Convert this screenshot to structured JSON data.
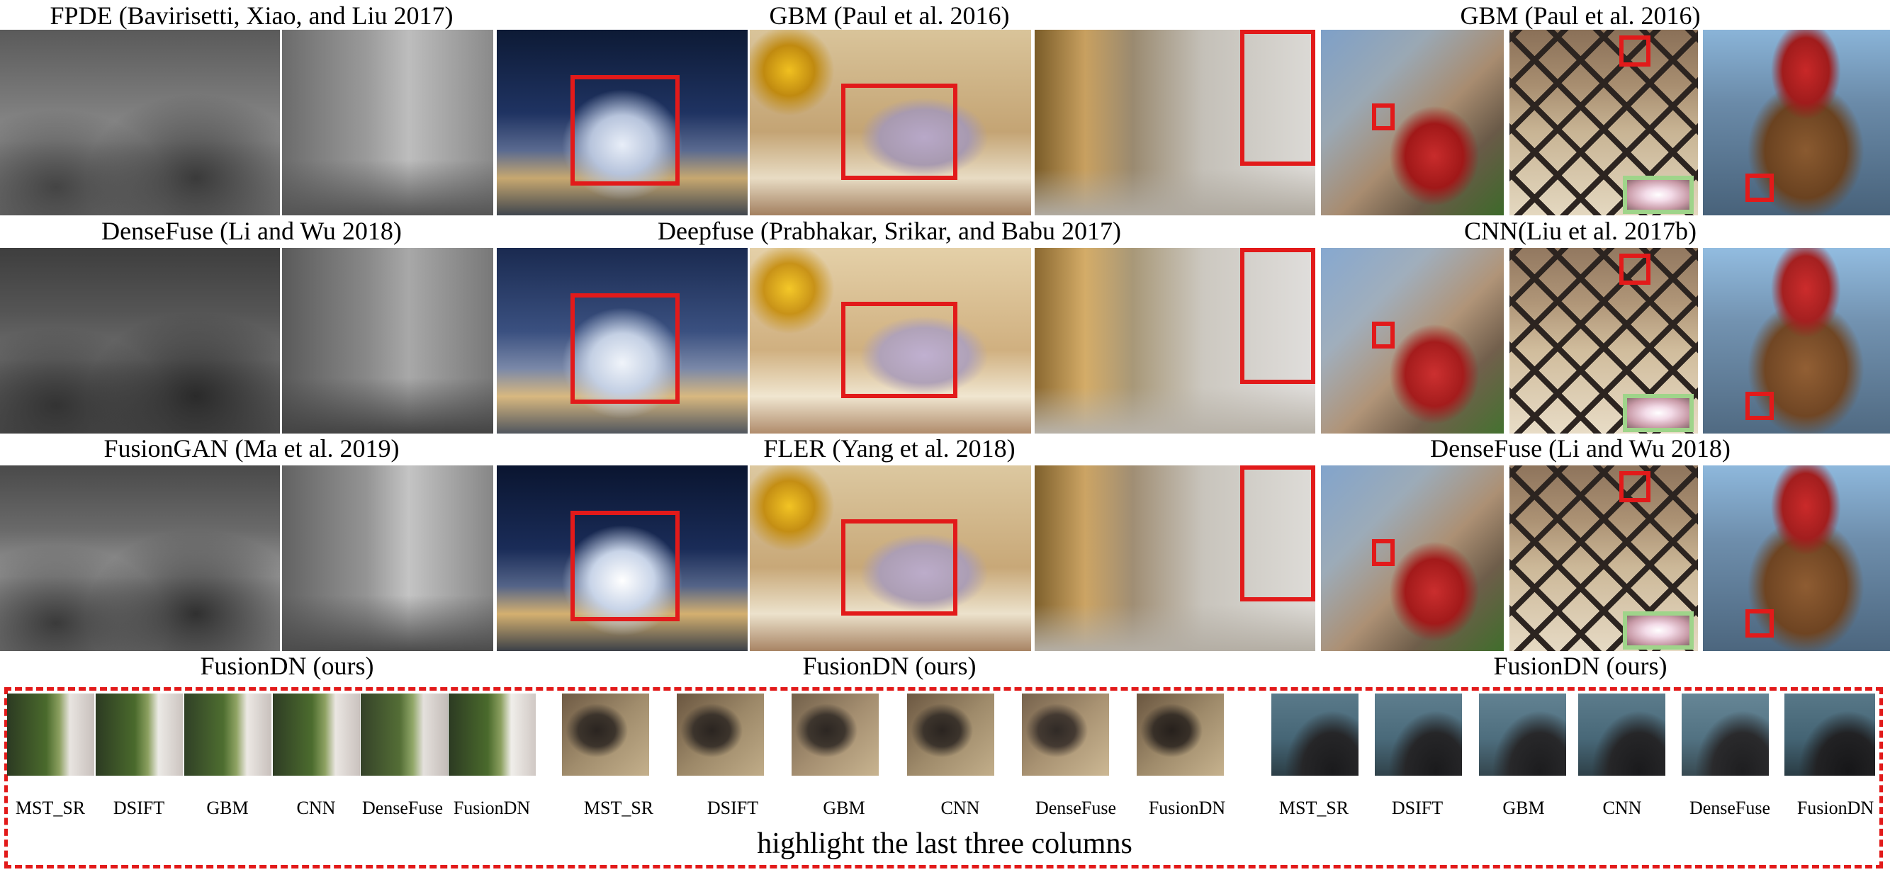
{
  "figure": {
    "rows": [
      {
        "captions": {
          "ir_visible": "FPDE (Bavirisetti, Xiao, and Liu 2017)",
          "exposure": "GBM (Paul et al. 2016)",
          "multifocus": "GBM (Paul et al. 2016)"
        }
      },
      {
        "captions": {
          "ir_visible": "DenseFuse (Li and Wu 2018)",
          "exposure": "Deepfuse (Prabhakar, Srikar, and Babu 2017)",
          "multifocus": "CNN(Liu et al. 2017b)"
        }
      },
      {
        "captions": {
          "ir_visible": "FusionGAN (Ma et al. 2019)",
          "exposure": "FLER (Yang et al. 2018)",
          "multifocus": "DenseFuse (Li and Wu 2018)"
        }
      },
      {
        "captions": {
          "ir_visible": "FusionDN (ours)",
          "exposure": "FusionDN (ours)",
          "multifocus": "FusionDN (ours)"
        }
      }
    ],
    "crop_groups": [
      {
        "labels": [
          "MST_SR",
          "DSIFT",
          "GBM",
          "CNN",
          "DenseFuse",
          "FusionDN"
        ]
      },
      {
        "labels": [
          "MST_SR",
          "DSIFT",
          "GBM",
          "CNN",
          "DenseFuse",
          "FusionDN"
        ]
      },
      {
        "labels": [
          "MST_SR",
          "DSIFT",
          "GBM",
          "CNN",
          "DenseFuse",
          "FusionDN"
        ]
      }
    ],
    "highlight_caption": "highlight the last three columns",
    "colors": {
      "highlight_box": "#e21a1a",
      "inset_box": "#9fd48a"
    }
  }
}
